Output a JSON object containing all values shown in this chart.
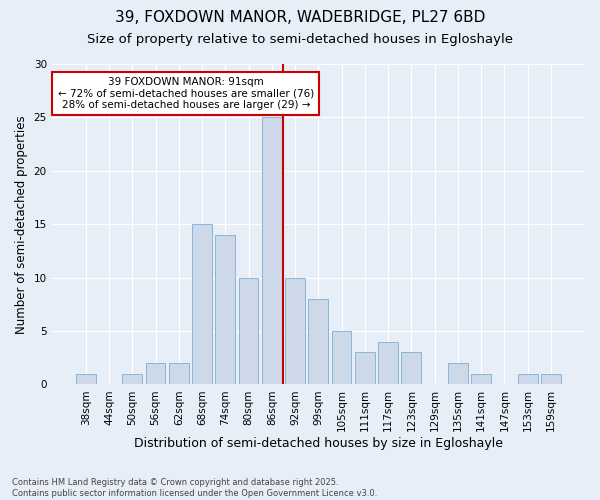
{
  "title1": "39, FOXDOWN MANOR, WADEBRIDGE, PL27 6BD",
  "title2": "Size of property relative to semi-detached houses in Egloshayle",
  "xlabel": "Distribution of semi-detached houses by size in Egloshayle",
  "ylabel": "Number of semi-detached properties",
  "bar_labels": [
    "38sqm",
    "44sqm",
    "50sqm",
    "56sqm",
    "62sqm",
    "68sqm",
    "74sqm",
    "80sqm",
    "86sqm",
    "92sqm",
    "99sqm",
    "105sqm",
    "111sqm",
    "117sqm",
    "123sqm",
    "129sqm",
    "135sqm",
    "141sqm",
    "147sqm",
    "153sqm",
    "159sqm"
  ],
  "bar_values": [
    1,
    0,
    1,
    2,
    2,
    15,
    14,
    10,
    25,
    10,
    8,
    5,
    3,
    4,
    3,
    0,
    2,
    1,
    0,
    1,
    1
  ],
  "bar_color": "#cdd9e8",
  "bar_edge_color": "#7bafd4",
  "vline_color": "#cc0000",
  "vline_x": 8.5,
  "ylim": [
    0,
    30
  ],
  "yticks": [
    0,
    5,
    10,
    15,
    20,
    25,
    30
  ],
  "bg_color": "#e8eef8",
  "plot_bg_color": "#e8eef8",
  "property_label": "39 FOXDOWN MANOR: 91sqm",
  "smaller_pct": 72,
  "smaller_count": 76,
  "larger_pct": 28,
  "larger_count": 29,
  "annotation_box_color": "#cc0000",
  "footer": "Contains HM Land Registry data © Crown copyright and database right 2025.\nContains public sector information licensed under the Open Government Licence v3.0.",
  "title1_fontsize": 11,
  "title2_fontsize": 9.5,
  "tick_fontsize": 7.5,
  "ylabel_fontsize": 8.5,
  "xlabel_fontsize": 9,
  "footer_fontsize": 6,
  "annot_fontsize": 7.5
}
